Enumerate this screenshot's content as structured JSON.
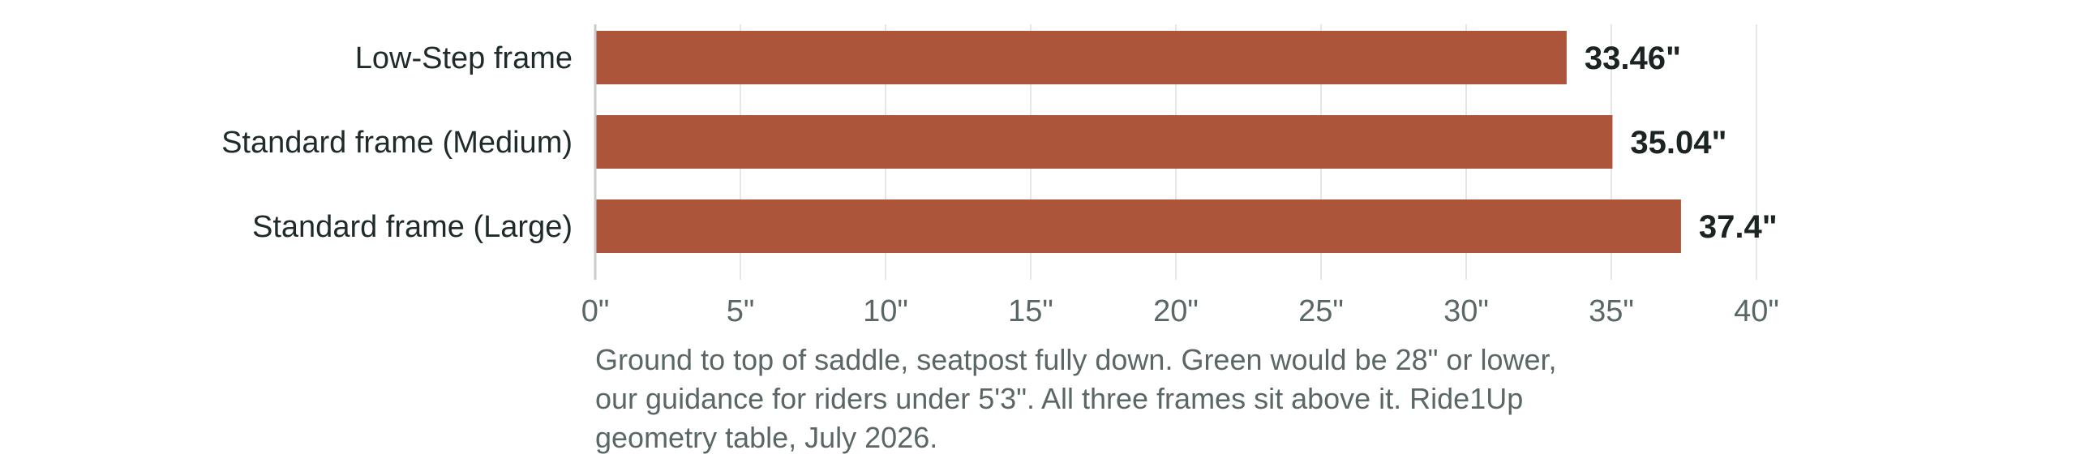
{
  "chart_data": {
    "type": "bar",
    "orientation": "horizontal",
    "categories": [
      "Low-Step frame",
      "Standard frame (Medium)",
      "Standard frame (Large)"
    ],
    "values": [
      33.46,
      35.04,
      37.4
    ],
    "data_labels": [
      "33.46\"",
      "35.04\"",
      "37.4\""
    ],
    "xlim": [
      0,
      40
    ],
    "x_ticks": [
      0,
      5,
      10,
      15,
      20,
      25,
      30,
      35,
      40
    ],
    "x_tick_labels": [
      "0\"",
      "5\"",
      "10\"",
      "15\"",
      "20\"",
      "25\"",
      "30\"",
      "35\"",
      "40\""
    ],
    "grid": "vertical",
    "bar_color": "#ac553b",
    "title": "",
    "xlabel": "",
    "ylabel": ""
  },
  "note": "Ground to top of saddle, seatpost fully down. Green would be 28\" or lower, our guidance for riders under 5'3\". All three frames sit above it. Ride1Up geometry table, July 2026."
}
